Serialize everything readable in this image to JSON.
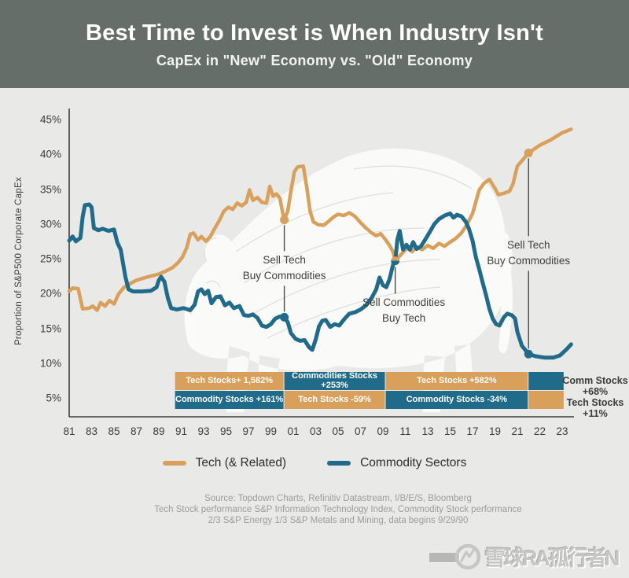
{
  "header": {
    "title": "Best Time to Invest is When Industry Isn't",
    "subtitle": "CapEx in \"New\" Economy vs. \"Old\" Economy"
  },
  "chart_data": {
    "type": "line",
    "ylabel": "Proportion of S&P500 Corporate CapEx",
    "ylim": [
      5,
      45
    ],
    "y_tick_values": [
      45,
      40,
      35,
      30,
      25,
      20,
      15,
      10,
      5
    ],
    "y_tick_suffix": "%",
    "x_tick_labels": [
      "81",
      "83",
      "85",
      "87",
      "89",
      "91",
      "93",
      "95",
      "97",
      "99",
      "01",
      "03",
      "05",
      "07",
      "09",
      "11",
      "13",
      "15",
      "17",
      "19",
      "21",
      "22",
      "23"
    ],
    "x_tick_years": [
      1981,
      1983,
      1985,
      1987,
      1989,
      1991,
      1993,
      1995,
      1997,
      1999,
      2001,
      2003,
      2005,
      2007,
      2009,
      2011,
      2013,
      2015,
      2017,
      2019,
      2021,
      2022,
      2023
    ],
    "grid": false,
    "legend_position": "bottom",
    "series": [
      {
        "name": "Tech (& Related)",
        "color": "#d9a05c",
        "points": [
          [
            1981,
            20.3
          ],
          [
            1981.3,
            20.8
          ],
          [
            1981.8,
            20.7
          ],
          [
            1982.2,
            17.8
          ],
          [
            1982.8,
            17.9
          ],
          [
            1983.1,
            18.2
          ],
          [
            1983.5,
            17.6
          ],
          [
            1983.8,
            18.7
          ],
          [
            1984.2,
            18.2
          ],
          [
            1984.6,
            19
          ],
          [
            1985,
            18.5
          ],
          [
            1985.4,
            19.9
          ],
          [
            1985.9,
            20.9
          ],
          [
            1986.4,
            21.4
          ],
          [
            1987,
            21.9
          ],
          [
            1987.6,
            22.2
          ],
          [
            1988.3,
            22.5
          ],
          [
            1989,
            22.8
          ],
          [
            1989.6,
            23.2
          ],
          [
            1990.2,
            23.7
          ],
          [
            1990.7,
            24.4
          ],
          [
            1991.1,
            25.2
          ],
          [
            1991.5,
            26.6
          ],
          [
            1991.8,
            28.5
          ],
          [
            1992.1,
            28.7
          ],
          [
            1992.5,
            27.7
          ],
          [
            1992.8,
            28.2
          ],
          [
            1993.2,
            27.5
          ],
          [
            1993.6,
            28.2
          ],
          [
            1994,
            29.4
          ],
          [
            1994.4,
            30.5
          ],
          [
            1994.8,
            31.8
          ],
          [
            1995.2,
            32.4
          ],
          [
            1995.6,
            32.1
          ],
          [
            1996,
            33
          ],
          [
            1996.4,
            32.6
          ],
          [
            1996.8,
            33.1
          ],
          [
            1997.1,
            34.9
          ],
          [
            1997.4,
            33.4
          ],
          [
            1997.8,
            33.8
          ],
          [
            1998.2,
            33.1
          ],
          [
            1998.6,
            33
          ],
          [
            1998.9,
            35.4
          ],
          [
            1999.2,
            34
          ],
          [
            1999.5,
            34.3
          ],
          [
            1999.8,
            33.7
          ],
          [
            2000.1,
            31.2
          ],
          [
            2000.2,
            30.6
          ],
          [
            2000.5,
            31.8
          ],
          [
            2000.8,
            34.8
          ],
          [
            2001.1,
            37.5
          ],
          [
            2001.4,
            38.2
          ],
          [
            2001.9,
            38.3
          ],
          [
            2002.2,
            35.3
          ],
          [
            2002.5,
            31.8
          ],
          [
            2002.8,
            30.3
          ],
          [
            2003.2,
            29.9
          ],
          [
            2003.7,
            29.8
          ],
          [
            2004.1,
            30.3
          ],
          [
            2004.6,
            31
          ],
          [
            2005,
            31.4
          ],
          [
            2005.5,
            31.2
          ],
          [
            2006,
            31.6
          ],
          [
            2006.5,
            31.1
          ],
          [
            2007,
            30.2
          ],
          [
            2007.5,
            29.4
          ],
          [
            2008,
            28.7
          ],
          [
            2008.4,
            28.3
          ],
          [
            2008.8,
            28.6
          ],
          [
            2009.2,
            27.8
          ],
          [
            2009.6,
            26.9
          ],
          [
            2009.9,
            26
          ],
          [
            2010.1,
            24.7
          ],
          [
            2010.5,
            25.4
          ],
          [
            2010.9,
            26.1
          ],
          [
            2011.2,
            26.6
          ],
          [
            2011.6,
            26
          ],
          [
            2012,
            26.7
          ],
          [
            2012.5,
            26.3
          ],
          [
            2013,
            26.9
          ],
          [
            2013.5,
            26.5
          ],
          [
            2014,
            27.2
          ],
          [
            2014.5,
            26.8
          ],
          [
            2015,
            27.4
          ],
          [
            2015.5,
            27.9
          ],
          [
            2016,
            28.7
          ],
          [
            2016.5,
            29.9
          ],
          [
            2017,
            31.5
          ],
          [
            2017.6,
            34.9
          ],
          [
            2018,
            35.8
          ],
          [
            2018.5,
            36.4
          ],
          [
            2019,
            35.1
          ],
          [
            2019.3,
            34.2
          ],
          [
            2019.8,
            34.4
          ],
          [
            2020.3,
            34.7
          ],
          [
            2020.6,
            35.7
          ],
          [
            2021,
            38.3
          ],
          [
            2021.5,
            40.2
          ],
          [
            2022,
            41.3
          ],
          [
            2022.5,
            42.1
          ],
          [
            2023,
            43.1
          ],
          [
            2023.4,
            43.6
          ]
        ]
      },
      {
        "name": "Commodity Sectors",
        "color": "#206b8a",
        "points": [
          [
            1981,
            27.6
          ],
          [
            1981.3,
            28.2
          ],
          [
            1981.6,
            27.5
          ],
          [
            1982,
            28
          ],
          [
            1982.2,
            31
          ],
          [
            1982.4,
            32.7
          ],
          [
            1982.8,
            32.8
          ],
          [
            1983,
            32.4
          ],
          [
            1983.2,
            29.4
          ],
          [
            1983.6,
            29.1
          ],
          [
            1984,
            29.3
          ],
          [
            1984.5,
            29
          ],
          [
            1985,
            29.2
          ],
          [
            1985.3,
            27.3
          ],
          [
            1985.6,
            26.3
          ],
          [
            1986,
            22.5
          ],
          [
            1986.3,
            20.6
          ],
          [
            1986.7,
            20.3
          ],
          [
            1987.5,
            20.3
          ],
          [
            1988.3,
            20.4
          ],
          [
            1988.8,
            20.9
          ],
          [
            1989,
            21.9
          ],
          [
            1989.2,
            22.4
          ],
          [
            1989.5,
            21.7
          ],
          [
            1989.8,
            19.4
          ],
          [
            1990.1,
            17.9
          ],
          [
            1990.6,
            17.7
          ],
          [
            1991.2,
            17.9
          ],
          [
            1991.8,
            17.6
          ],
          [
            1992.2,
            18.4
          ],
          [
            1992.5,
            20.3
          ],
          [
            1992.8,
            20.6
          ],
          [
            1993.1,
            19.9
          ],
          [
            1993.4,
            20.4
          ],
          [
            1993.7,
            18.6
          ],
          [
            1994.1,
            19.5
          ],
          [
            1994.5,
            19.6
          ],
          [
            1994.9,
            18.3
          ],
          [
            1995.3,
            18.7
          ],
          [
            1995.7,
            17.9
          ],
          [
            1996.2,
            18.2
          ],
          [
            1996.6,
            16.9
          ],
          [
            1997,
            16.8
          ],
          [
            1997.4,
            17
          ],
          [
            1997.8,
            16.5
          ],
          [
            1998.2,
            15.4
          ],
          [
            1998.6,
            15.2
          ],
          [
            1999,
            15.6
          ],
          [
            1999.4,
            16.4
          ],
          [
            1999.8,
            16.7
          ],
          [
            2000.2,
            16.6
          ],
          [
            2000.5,
            15.9
          ],
          [
            2000.8,
            14.3
          ],
          [
            2001.2,
            13.5
          ],
          [
            2001.6,
            13.2
          ],
          [
            2002,
            13.3
          ],
          [
            2002.4,
            12.3
          ],
          [
            2002.7,
            11.9
          ],
          [
            2003,
            13.4
          ],
          [
            2003.3,
            15.3
          ],
          [
            2003.6,
            16.1
          ],
          [
            2003.9,
            16.2
          ],
          [
            2004.3,
            15.2
          ],
          [
            2004.7,
            15.6
          ],
          [
            2005.1,
            15.4
          ],
          [
            2005.6,
            16.4
          ],
          [
            2006,
            17.1
          ],
          [
            2006.5,
            17.3
          ],
          [
            2007,
            17.7
          ],
          [
            2007.5,
            18.3
          ],
          [
            2008,
            19.4
          ],
          [
            2008.4,
            20.6
          ],
          [
            2008.7,
            22.3
          ],
          [
            2009,
            21.2
          ],
          [
            2009.3,
            20.9
          ],
          [
            2009.6,
            22.1
          ],
          [
            2009.9,
            24.1
          ],
          [
            2010.1,
            24.7
          ],
          [
            2010.3,
            27.8
          ],
          [
            2010.5,
            29
          ],
          [
            2010.8,
            26.3
          ],
          [
            2011.1,
            27
          ],
          [
            2011.4,
            26.3
          ],
          [
            2011.7,
            27.4
          ],
          [
            2012,
            26.4
          ],
          [
            2012.4,
            26.8
          ],
          [
            2012.8,
            27.8
          ],
          [
            2013.2,
            28.9
          ],
          [
            2013.6,
            30
          ],
          [
            2014,
            30.7
          ],
          [
            2014.5,
            31.2
          ],
          [
            2015,
            31.5
          ],
          [
            2015.3,
            30.9
          ],
          [
            2015.6,
            31.3
          ],
          [
            2016,
            31.1
          ],
          [
            2016.4,
            30.3
          ],
          [
            2016.7,
            29.2
          ],
          [
            2017,
            27.6
          ],
          [
            2017.3,
            25.2
          ],
          [
            2017.6,
            23.5
          ],
          [
            2017.9,
            21.6
          ],
          [
            2018.2,
            19.8
          ],
          [
            2018.5,
            17.8
          ],
          [
            2018.8,
            16.4
          ],
          [
            2019.1,
            15.6
          ],
          [
            2019.4,
            15.4
          ],
          [
            2019.8,
            16.6
          ],
          [
            2020.1,
            17.1
          ],
          [
            2020.5,
            16.9
          ],
          [
            2020.8,
            16.4
          ],
          [
            2021,
            14.5
          ],
          [
            2021.2,
            12.5
          ],
          [
            2021.5,
            11.3
          ],
          [
            2021.8,
            11
          ],
          [
            2022.2,
            10.8
          ],
          [
            2022.6,
            10.8
          ],
          [
            2022.9,
            11.1
          ],
          [
            2023.2,
            12
          ],
          [
            2023.4,
            12.7
          ]
        ]
      }
    ],
    "annotations": [
      {
        "line1": "Sell Tech",
        "line2": "Buy Commodities",
        "year": 2000.2,
        "top_pct": 30.6,
        "bottom_pct": 16.6,
        "top_color": "#d9a05c",
        "bottom_color": "#206b8a",
        "style": "double-dot"
      },
      {
        "line1": "Sell Commodities",
        "line2": "Buy Tech",
        "year": 2010.1,
        "dot_pct": 24.7,
        "top_color": "#d9a05c",
        "bottom_color": "#206b8a",
        "style": "single-dot"
      },
      {
        "line1": "Sell Tech",
        "line2": "Buy Commodities",
        "year": 2021.5,
        "top_pct": 40.2,
        "bottom_pct": 11.3,
        "top_color": "#d9a05c",
        "bottom_color": "#206b8a",
        "style": "double-dot"
      }
    ],
    "performance_bands": {
      "boundary_years": [
        1990.45,
        2000.2,
        2009.25,
        2021.5,
        2023.1
      ],
      "colors": {
        "tech": "#d9a05c",
        "commodity": "#206b8a"
      },
      "row1": [
        {
          "label": "Tech Stocks+ 1,582%",
          "color": "tech"
        },
        {
          "label": "Commodities Stocks +253%",
          "color": "commodity"
        },
        {
          "label": "Tech Stocks +582%",
          "color": "tech"
        },
        {
          "label": "",
          "color": "commodity"
        }
      ],
      "row2": [
        {
          "label": "Commodity Stocks +161%",
          "color": "commodity"
        },
        {
          "label": "Tech Stocks -59%",
          "color": "tech"
        },
        {
          "label": "Commodity Stocks -34%",
          "color": "commodity"
        },
        {
          "label": "",
          "color": "tech"
        }
      ],
      "side_labels": [
        {
          "line1": "Comm Stocks",
          "line2": "+68%"
        },
        {
          "line1": "Tech Stocks",
          "line2": "+11%"
        }
      ]
    }
  },
  "legend": {
    "items": [
      {
        "label": "Tech (& Related)",
        "color": "#d9a05c"
      },
      {
        "label": "Commodity Sectors",
        "color": "#206b8a"
      }
    ]
  },
  "source": {
    "lines": [
      "Source: Topdown Charts, Refinitiv Datastream, I/B/E/S, Bloomberg",
      "Tech Stock performance S&P Information Technology Index, Commodity Stock performance",
      "2/3 S&P Energy 1/3 S&P Metals and Mining, data begins 9/29/90"
    ]
  },
  "watermark": {
    "text": "雪球RA孤行者N"
  }
}
